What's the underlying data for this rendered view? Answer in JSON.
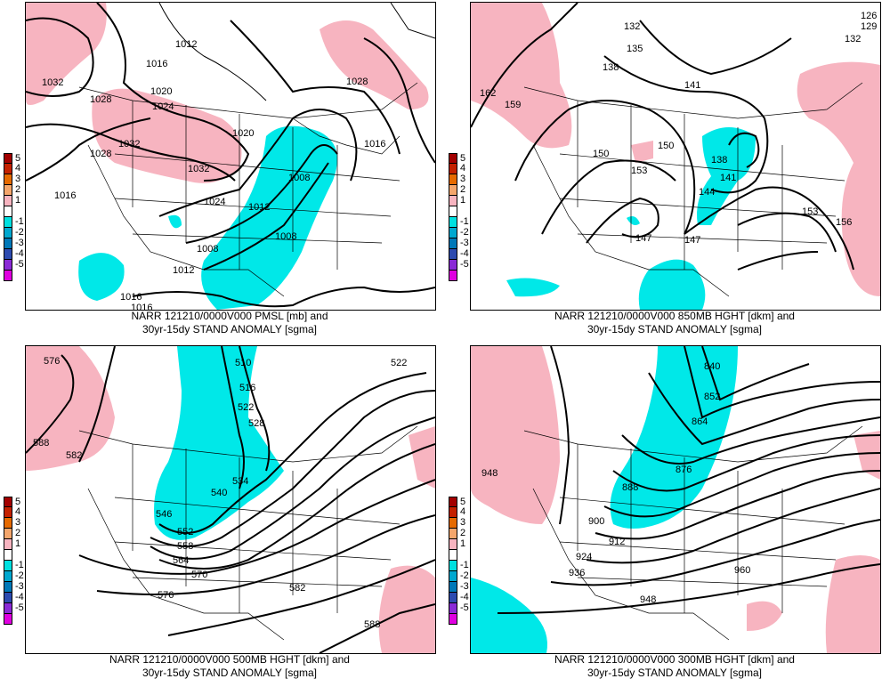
{
  "colorbar": {
    "levels": [
      {
        "label": "5",
        "color": "#a30000"
      },
      {
        "label": "4",
        "color": "#c42100"
      },
      {
        "label": "3",
        "color": "#e66a00"
      },
      {
        "label": "2",
        "color": "#f4a66c"
      },
      {
        "label": "1",
        "color": "#f7b4c0"
      },
      {
        "label": "",
        "color": "#ffffff"
      },
      {
        "label": "-1",
        "color": "#00e0e0"
      },
      {
        "label": "-2",
        "color": "#00a8d0"
      },
      {
        "label": "-3",
        "color": "#0078b8"
      },
      {
        "label": "-4",
        "color": "#2d4bb0"
      },
      {
        "label": "-5",
        "color": "#8a2ad6"
      },
      {
        "label": "",
        "color": "#e000e0"
      }
    ]
  },
  "colors": {
    "positive_anomaly": "#f7b4c0",
    "negative_anomaly": "#00e8e8",
    "contour": "#000000",
    "boundaries": "#000000"
  },
  "panels": [
    {
      "id": "pmsl",
      "caption_line1": "NARR 121210/0000V000 PMSL [mb] and",
      "caption_line2": "30yr-15dy STAND ANOMALY [sgma]",
      "contour_labels": [
        "1012",
        "1016",
        "1032",
        "1028",
        "1020",
        "1024",
        "1032",
        "1032",
        "1028",
        "1020",
        "1016",
        "1016",
        "1024",
        "1008",
        "1012",
        "1008",
        "1008",
        "1012",
        "1016",
        "1016",
        "1028"
      ]
    },
    {
      "id": "hgt850",
      "caption_line1": "NARR 121210/0000V000 850MB HGHT [dkm] and",
      "caption_line2": "30yr-15dy STAND ANOMALY [sgma]",
      "contour_labels": [
        "132",
        "135",
        "138",
        "141",
        "162",
        "159",
        "150",
        "153",
        "138",
        "141",
        "144",
        "147",
        "147",
        "150",
        "153",
        "156",
        "126",
        "129",
        "132"
      ]
    },
    {
      "id": "hgt500",
      "caption_line1": "NARR 121210/0000V000 500MB HGHT [dkm] and",
      "caption_line2": "30yr-15dy STAND ANOMALY [sgma]",
      "contour_labels": [
        "576",
        "510",
        "516",
        "522",
        "522",
        "528",
        "588",
        "582",
        "534",
        "540",
        "546",
        "552",
        "558",
        "564",
        "570",
        "576",
        "582",
        "588"
      ]
    },
    {
      "id": "hgt300",
      "caption_line1": "NARR 121210/0000V000 300MB HGHT [dkm] and",
      "caption_line2": "30yr-15dy STAND ANOMALY [sgma]",
      "contour_labels": [
        "840",
        "852",
        "864",
        "876",
        "888",
        "900",
        "912",
        "924",
        "936",
        "948",
        "948",
        "960"
      ]
    }
  ]
}
